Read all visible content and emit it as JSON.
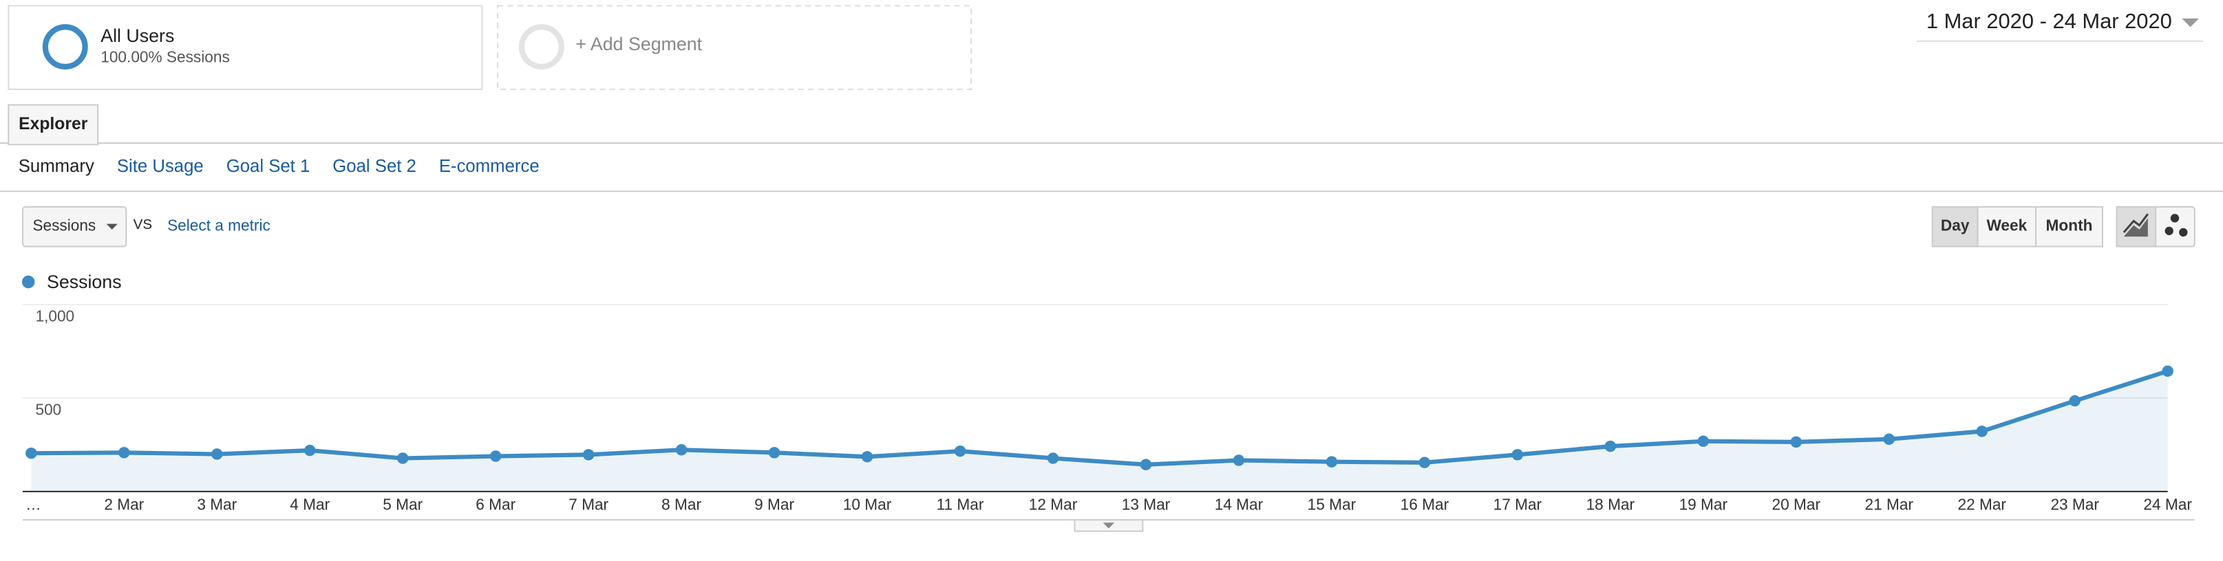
{
  "segments": [
    {
      "name": "All Users",
      "detail": "100.00% Sessions"
    },
    {
      "name": "+ Add Segment"
    }
  ],
  "date_range": "1 Mar 2020 - 24 Mar 2020",
  "tab": "Explorer",
  "subtabs": [
    "Summary",
    "Site Usage",
    "Goal Set 1",
    "Goal Set 2",
    "E-commerce"
  ],
  "metric": "Sessions",
  "vs": "VS",
  "select_metric": "Select a metric",
  "intervals": [
    "Day",
    "Week",
    "Month"
  ],
  "chart_data": {
    "type": "line",
    "categories": [
      "…",
      "2 Mar",
      "3 Mar",
      "4 Mar",
      "5 Mar",
      "6 Mar",
      "7 Mar",
      "8 Mar",
      "9 Mar",
      "10 Mar",
      "11 Mar",
      "12 Mar",
      "13 Mar",
      "14 Mar",
      "15 Mar",
      "16 Mar",
      "17 Mar",
      "18 Mar",
      "19 Mar",
      "20 Mar",
      "21 Mar",
      "22 Mar",
      "23 Mar",
      "24 Mar"
    ],
    "series": [
      {
        "name": "Sessions",
        "color": "#3d8bc4",
        "values": [
          205,
          208,
          200,
          220,
          178,
          189,
          197,
          223,
          208,
          186,
          216,
          178,
          144,
          167,
          159,
          155,
          197,
          242,
          269,
          265,
          280,
          322,
          485,
          644
        ]
      }
    ],
    "ylim": [
      0,
      1000
    ],
    "yticks": [
      {
        "value": 500,
        "label": "500"
      },
      {
        "value": 1000,
        "label": "1,000"
      }
    ],
    "grid": true
  }
}
